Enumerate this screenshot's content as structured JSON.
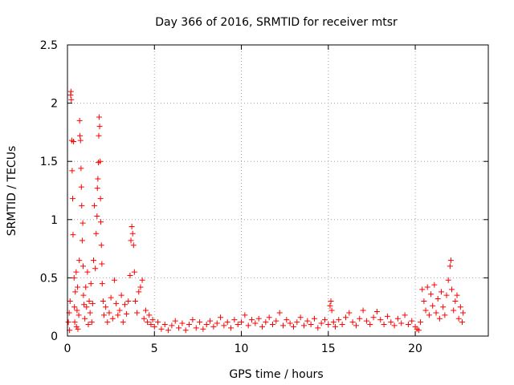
{
  "chart_data": {
    "type": "scatter",
    "title": "Day 366 of 2016, SRMTID for receiver mtsr",
    "xlabel": "GPS time / hours",
    "ylabel": "SRMTID / TECUs",
    "xlim": [
      0,
      24.2
    ],
    "ylim": [
      0,
      2.5
    ],
    "xticks": [
      0,
      5,
      10,
      15,
      20
    ],
    "yticks": [
      0,
      0.5,
      1,
      1.5,
      2,
      2.5
    ],
    "grid": true,
    "marker": "+",
    "color": "#ff0000",
    "series": [
      {
        "name": "mtsr",
        "points": [
          [
            0.05,
            0.12
          ],
          [
            0.1,
            0.2
          ],
          [
            0.12,
            0.05
          ],
          [
            0.15,
            0.3
          ],
          [
            0.18,
            2.07
          ],
          [
            0.2,
            2.1
          ],
          [
            0.22,
            2.03
          ],
          [
            0.25,
            1.68
          ],
          [
            0.27,
            1.42
          ],
          [
            0.3,
            1.18
          ],
          [
            0.32,
            0.87
          ],
          [
            0.35,
            1.67
          ],
          [
            0.38,
            0.5
          ],
          [
            0.4,
            0.25
          ],
          [
            0.42,
            0.12
          ],
          [
            0.45,
            0.38
          ],
          [
            0.5,
            0.55
          ],
          [
            0.52,
            0.08
          ],
          [
            0.55,
            0.22
          ],
          [
            0.58,
            0.42
          ],
          [
            0.6,
            0.06
          ],
          [
            0.65,
            0.18
          ],
          [
            0.68,
            0.65
          ],
          [
            0.7,
            1.85
          ],
          [
            0.72,
            1.72
          ],
          [
            0.75,
            1.68
          ],
          [
            0.78,
            1.44
          ],
          [
            0.8,
            1.28
          ],
          [
            0.82,
            1.12
          ],
          [
            0.85,
            0.82
          ],
          [
            0.88,
            0.97
          ],
          [
            0.9,
            0.6
          ],
          [
            0.92,
            0.35
          ],
          [
            0.95,
            0.27
          ],
          [
            1.0,
            0.15
          ],
          [
            1.05,
            0.42
          ],
          [
            1.1,
            0.25
          ],
          [
            1.15,
            0.55
          ],
          [
            1.2,
            0.1
          ],
          [
            1.25,
            0.3
          ],
          [
            1.3,
            0.2
          ],
          [
            1.35,
            0.45
          ],
          [
            1.4,
            0.12
          ],
          [
            1.45,
            0.28
          ],
          [
            1.5,
            0.65
          ],
          [
            1.55,
            1.12
          ],
          [
            1.6,
            0.58
          ],
          [
            1.65,
            0.88
          ],
          [
            1.7,
            1.03
          ],
          [
            1.72,
            1.27
          ],
          [
            1.75,
            1.35
          ],
          [
            1.78,
            1.49
          ],
          [
            1.8,
            1.72
          ],
          [
            1.82,
            1.88
          ],
          [
            1.85,
            1.8
          ],
          [
            1.88,
            1.5
          ],
          [
            1.9,
            1.18
          ],
          [
            1.92,
            0.98
          ],
          [
            1.95,
            0.78
          ],
          [
            1.98,
            0.62
          ],
          [
            2.0,
            0.45
          ],
          [
            2.05,
            0.3
          ],
          [
            2.1,
            0.18
          ],
          [
            2.2,
            0.25
          ],
          [
            2.3,
            0.12
          ],
          [
            2.4,
            0.2
          ],
          [
            2.5,
            0.33
          ],
          [
            2.6,
            0.15
          ],
          [
            2.7,
            0.48
          ],
          [
            2.8,
            0.28
          ],
          [
            2.9,
            0.18
          ],
          [
            3.0,
            0.22
          ],
          [
            3.1,
            0.35
          ],
          [
            3.2,
            0.12
          ],
          [
            3.3,
            0.27
          ],
          [
            3.4,
            0.19
          ],
          [
            3.5,
            0.3
          ],
          [
            3.6,
            0.52
          ],
          [
            3.65,
            0.82
          ],
          [
            3.7,
            0.94
          ],
          [
            3.75,
            0.88
          ],
          [
            3.8,
            0.78
          ],
          [
            3.85,
            0.55
          ],
          [
            3.9,
            0.3
          ],
          [
            4.0,
            0.2
          ],
          [
            4.1,
            0.38
          ],
          [
            4.2,
            0.42
          ],
          [
            4.3,
            0.48
          ],
          [
            4.4,
            0.15
          ],
          [
            4.5,
            0.22
          ],
          [
            4.6,
            0.12
          ],
          [
            4.7,
            0.18
          ],
          [
            4.8,
            0.1
          ],
          [
            4.9,
            0.14
          ],
          [
            5.0,
            0.08
          ],
          [
            5.2,
            0.12
          ],
          [
            5.4,
            0.06
          ],
          [
            5.6,
            0.1
          ],
          [
            5.8,
            0.05
          ],
          [
            6.0,
            0.09
          ],
          [
            6.2,
            0.13
          ],
          [
            6.4,
            0.07
          ],
          [
            6.6,
            0.11
          ],
          [
            6.8,
            0.05
          ],
          [
            7.0,
            0.1
          ],
          [
            7.2,
            0.14
          ],
          [
            7.4,
            0.07
          ],
          [
            7.6,
            0.12
          ],
          [
            7.8,
            0.06
          ],
          [
            8.0,
            0.1
          ],
          [
            8.2,
            0.13
          ],
          [
            8.4,
            0.08
          ],
          [
            8.6,
            0.11
          ],
          [
            8.8,
            0.16
          ],
          [
            9.0,
            0.09
          ],
          [
            9.2,
            0.12
          ],
          [
            9.4,
            0.07
          ],
          [
            9.6,
            0.14
          ],
          [
            9.8,
            0.1
          ],
          [
            10.0,
            0.12
          ],
          [
            10.2,
            0.18
          ],
          [
            10.4,
            0.09
          ],
          [
            10.6,
            0.14
          ],
          [
            10.8,
            0.11
          ],
          [
            11.0,
            0.15
          ],
          [
            11.2,
            0.08
          ],
          [
            11.4,
            0.12
          ],
          [
            11.6,
            0.16
          ],
          [
            11.8,
            0.1
          ],
          [
            12.0,
            0.13
          ],
          [
            12.2,
            0.2
          ],
          [
            12.4,
            0.09
          ],
          [
            12.6,
            0.14
          ],
          [
            12.8,
            0.11
          ],
          [
            13.0,
            0.08
          ],
          [
            13.2,
            0.12
          ],
          [
            13.4,
            0.16
          ],
          [
            13.6,
            0.09
          ],
          [
            13.8,
            0.13
          ],
          [
            14.0,
            0.1
          ],
          [
            14.2,
            0.15
          ],
          [
            14.4,
            0.07
          ],
          [
            14.6,
            0.11
          ],
          [
            14.8,
            0.14
          ],
          [
            15.0,
            0.1
          ],
          [
            15.1,
            0.26
          ],
          [
            15.15,
            0.3
          ],
          [
            15.2,
            0.22
          ],
          [
            15.3,
            0.12
          ],
          [
            15.4,
            0.08
          ],
          [
            15.6,
            0.14
          ],
          [
            15.8,
            0.1
          ],
          [
            16.0,
            0.16
          ],
          [
            16.2,
            0.2
          ],
          [
            16.4,
            0.12
          ],
          [
            16.6,
            0.09
          ],
          [
            16.8,
            0.15
          ],
          [
            17.0,
            0.22
          ],
          [
            17.2,
            0.13
          ],
          [
            17.4,
            0.1
          ],
          [
            17.6,
            0.16
          ],
          [
            17.8,
            0.21
          ],
          [
            18.0,
            0.14
          ],
          [
            18.2,
            0.1
          ],
          [
            18.4,
            0.17
          ],
          [
            18.6,
            0.12
          ],
          [
            18.8,
            0.09
          ],
          [
            19.0,
            0.15
          ],
          [
            19.2,
            0.11
          ],
          [
            19.4,
            0.18
          ],
          [
            19.6,
            0.1
          ],
          [
            19.8,
            0.13
          ],
          [
            20.0,
            0.08
          ],
          [
            20.1,
            0.06
          ],
          [
            20.2,
            0.05
          ],
          [
            20.3,
            0.12
          ],
          [
            20.4,
            0.4
          ],
          [
            20.5,
            0.3
          ],
          [
            20.6,
            0.22
          ],
          [
            20.7,
            0.42
          ],
          [
            20.8,
            0.18
          ],
          [
            20.9,
            0.36
          ],
          [
            21.0,
            0.26
          ],
          [
            21.1,
            0.44
          ],
          [
            21.2,
            0.2
          ],
          [
            21.3,
            0.32
          ],
          [
            21.4,
            0.15
          ],
          [
            21.5,
            0.38
          ],
          [
            21.6,
            0.25
          ],
          [
            21.7,
            0.18
          ],
          [
            21.8,
            0.35
          ],
          [
            21.9,
            0.48
          ],
          [
            22.0,
            0.6
          ],
          [
            22.05,
            0.65
          ],
          [
            22.1,
            0.4
          ],
          [
            22.2,
            0.22
          ],
          [
            22.3,
            0.3
          ],
          [
            22.4,
            0.35
          ],
          [
            22.5,
            0.15
          ],
          [
            22.6,
            0.25
          ],
          [
            22.7,
            0.12
          ],
          [
            22.75,
            0.2
          ]
        ]
      }
    ]
  }
}
